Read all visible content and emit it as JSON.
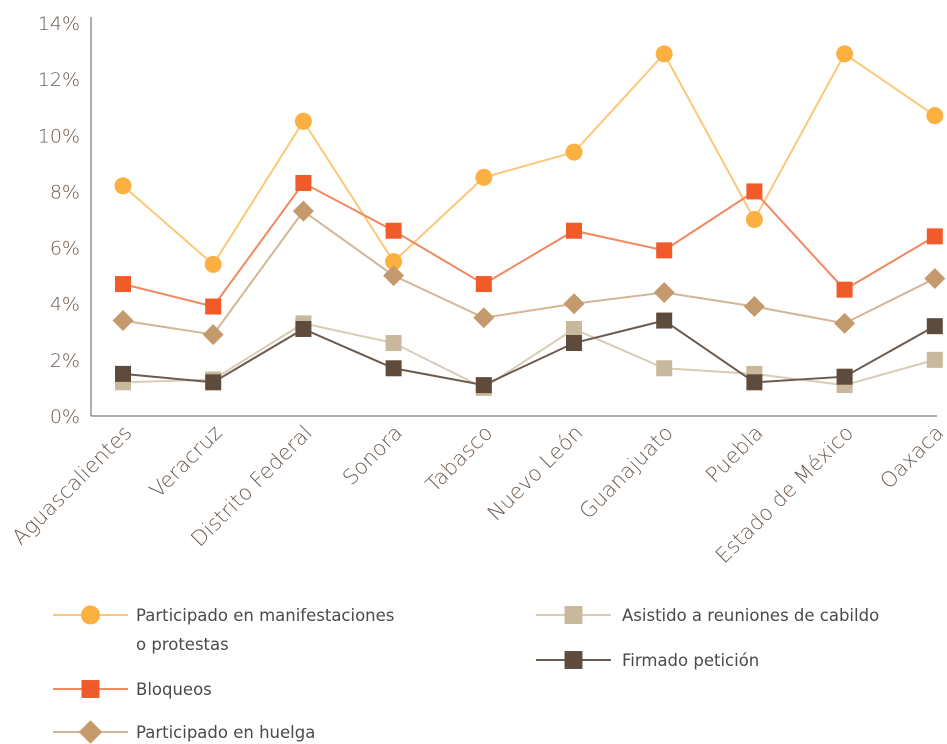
{
  "chart_data": {
    "type": "line",
    "title": "",
    "xlabel": "",
    "ylabel": "",
    "ylim": [
      0,
      14
    ],
    "yticks": [
      0,
      2,
      4,
      6,
      8,
      10,
      12,
      14
    ],
    "ytick_labels": [
      "0%",
      "2%",
      "4%",
      "6%",
      "8%",
      "10%",
      "12%",
      "14%"
    ],
    "grid": false,
    "legend_position": "bottom",
    "categories": [
      "Aguascalientes",
      "Veracruz",
      "Distrito Federal",
      "Sonora",
      "Tabasco",
      "Nuevo León",
      "Guanajuato",
      "Puebla",
      "Estado de México",
      "Oaxaca"
    ],
    "series": [
      {
        "name": "Participado en manifestaciones o protestas",
        "legend_lines": [
          "Participado en manifestaciones",
          "o protestas"
        ],
        "marker": "circle",
        "color": "#fbb040",
        "line_color": "#fcc878",
        "values": [
          8.2,
          5.4,
          10.5,
          5.5,
          8.5,
          9.4,
          12.9,
          7.0,
          12.9,
          10.7
        ]
      },
      {
        "name": "Bloqueos",
        "legend_lines": [
          "Bloqueos"
        ],
        "marker": "square",
        "color": "#f15a29",
        "line_color": "#f28860",
        "values": [
          4.7,
          3.9,
          8.3,
          6.6,
          4.7,
          6.6,
          5.9,
          8.0,
          4.5,
          6.4
        ]
      },
      {
        "name": "Participado en huelga",
        "legend_lines": [
          "Participado en huelga"
        ],
        "marker": "diamond",
        "color": "#c49a6c",
        "line_color": "#d4b595",
        "values": [
          3.4,
          2.9,
          7.3,
          5.0,
          3.5,
          4.0,
          4.4,
          3.9,
          3.3,
          4.9
        ]
      },
      {
        "name": "Asistido a reuniones de cabildo",
        "legend_lines": [
          "Asistido a reuniones de cabildo"
        ],
        "marker": "square",
        "color": "#c8b99c",
        "line_color": "#d8ccb7",
        "values": [
          1.2,
          1.3,
          3.3,
          2.6,
          1.0,
          3.1,
          1.7,
          1.5,
          1.1,
          2.0
        ]
      },
      {
        "name": "Firmado petición",
        "legend_lines": [
          "Firmado petición"
        ],
        "marker": "square",
        "color": "#5e4b3c",
        "line_color": "#6b5a4e",
        "values": [
          1.5,
          1.2,
          3.1,
          1.7,
          1.1,
          2.6,
          3.4,
          1.2,
          1.4,
          3.2
        ]
      }
    ]
  }
}
